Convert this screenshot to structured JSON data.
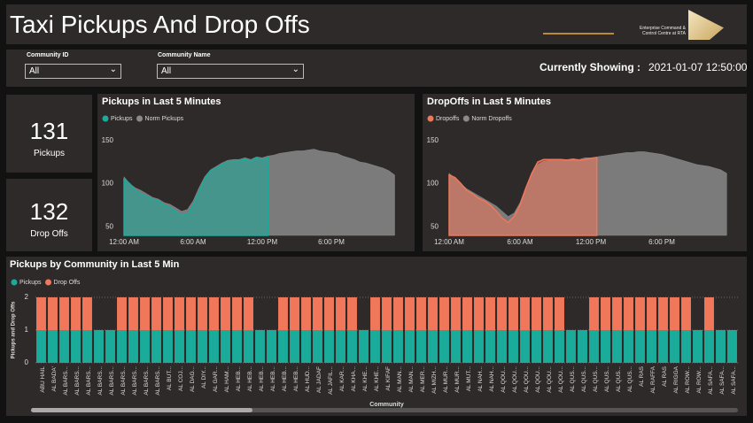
{
  "header": {
    "title": "Taxi Pickups And Drop Offs",
    "logo_text": "Enterprise Command & Control Centre at RTA"
  },
  "filters": {
    "community_id_label": "Community ID",
    "community_id_value": "All",
    "community_name_label": "Community Name",
    "community_name_value": "All",
    "showing_label": "Currently Showing :",
    "showing_value": "2021-01-07 12:50:00"
  },
  "kpis": [
    {
      "value": "131",
      "label": "Pickups"
    },
    {
      "value": "132",
      "label": "Drop Offs"
    }
  ],
  "chart_data": [
    {
      "type": "area",
      "title": "Pickups in Last 5 Minutes",
      "x": [
        0,
        0.5,
        1,
        1.5,
        2,
        2.5,
        3,
        3.5,
        4,
        4.5,
        5,
        5.5,
        6,
        6.5,
        7,
        7.5,
        8,
        8.5,
        9,
        9.5,
        10,
        10.5,
        11,
        11.5,
        12,
        12.5,
        13,
        13.5,
        14,
        14.5,
        15,
        15.5,
        16,
        16.5,
        17,
        17.5,
        18,
        18.5,
        19,
        19.5,
        20,
        20.5,
        21,
        21.5,
        22,
        22.5,
        23,
        23.5
      ],
      "series": [
        {
          "name": "Pickups",
          "color": "#1aab9b",
          "values": [
            105,
            100,
            92,
            88,
            85,
            82,
            80,
            75,
            72,
            68,
            63,
            65,
            75,
            90,
            105,
            115,
            118,
            122,
            125,
            125,
            127,
            128,
            126,
            130,
            128,
            130,
            null,
            null,
            null,
            null,
            null,
            null,
            null,
            null,
            null,
            null,
            null,
            null,
            null,
            null,
            null,
            null,
            null,
            null,
            null,
            null,
            null,
            null
          ]
        },
        {
          "name": "Norm Pickups",
          "color": "#8a8a8a",
          "values": [
            108,
            100,
            95,
            92,
            88,
            84,
            82,
            78,
            76,
            72,
            68,
            70,
            80,
            95,
            108,
            116,
            120,
            124,
            127,
            128,
            128,
            130,
            128,
            131,
            130,
            132,
            133,
            135,
            136,
            137,
            138,
            138,
            139,
            140,
            138,
            137,
            136,
            135,
            132,
            130,
            128,
            125,
            124,
            122,
            120,
            118,
            115,
            110
          ]
        }
      ],
      "xlim": [
        0,
        24
      ],
      "xticks": [
        {
          "value": 0,
          "label": "12:00 AM"
        },
        {
          "value": 6,
          "label": "6:00 AM"
        },
        {
          "value": 12,
          "label": "12:00 PM"
        },
        {
          "value": 18,
          "label": "6:00 PM"
        }
      ],
      "ylim": [
        40,
        160
      ],
      "yticks": [
        50,
        100,
        150
      ],
      "grid": false
    },
    {
      "type": "area",
      "title": "DropOffs in Last 5 Minutes",
      "x": [
        0,
        0.5,
        1,
        1.5,
        2,
        2.5,
        3,
        3.5,
        4,
        4.5,
        5,
        5.5,
        6,
        6.5,
        7,
        7.5,
        8,
        8.5,
        9,
        9.5,
        10,
        10.5,
        11,
        11.5,
        12,
        12.5,
        13,
        13.5,
        14,
        14.5,
        15,
        15.5,
        16,
        16.5,
        17,
        17.5,
        18,
        18.5,
        19,
        19.5,
        20,
        20.5,
        21,
        21.5,
        22,
        22.5,
        23,
        23.5
      ],
      "series": [
        {
          "name": "Dropoffs",
          "color": "#f0775a",
          "values": [
            110,
            107,
            100,
            92,
            88,
            83,
            80,
            75,
            68,
            60,
            55,
            62,
            75,
            95,
            112,
            125,
            128,
            128,
            128,
            128,
            127,
            128,
            127,
            128,
            129,
            130,
            null,
            null,
            null,
            null,
            null,
            null,
            null,
            null,
            null,
            null,
            null,
            null,
            null,
            null,
            null,
            null,
            null,
            null,
            null,
            null,
            null,
            null
          ]
        },
        {
          "name": "Norm Dropoffs",
          "color": "#8a8a8a",
          "values": [
            112,
            106,
            100,
            94,
            90,
            86,
            82,
            78,
            74,
            68,
            62,
            66,
            78,
            96,
            112,
            122,
            126,
            127,
            128,
            128,
            128,
            129,
            128,
            130,
            130,
            131,
            132,
            133,
            134,
            135,
            136,
            136,
            137,
            137,
            136,
            135,
            134,
            132,
            130,
            128,
            126,
            124,
            122,
            121,
            120,
            118,
            116,
            112
          ]
        }
      ],
      "xlim": [
        0,
        24
      ],
      "xticks": [
        {
          "value": 0,
          "label": "12:00 AM"
        },
        {
          "value": 6,
          "label": "6:00 AM"
        },
        {
          "value": 12,
          "label": "12:00 PM"
        },
        {
          "value": 18,
          "label": "6:00 PM"
        }
      ],
      "ylim": [
        40,
        160
      ],
      "yticks": [
        50,
        100,
        150
      ],
      "grid": false
    },
    {
      "type": "stacked-bar",
      "title": "Pickups by Community in Last 5 Min",
      "xlabel": "Community",
      "ylabel": "Pickups and Drop Offs",
      "categories": [
        "ABU HAIL",
        "AL BADA'",
        "AL BARS...",
        "AL BARS...",
        "AL BARS...",
        "AL BARS...",
        "AL BARS...",
        "AL BARS...",
        "AL BARS...",
        "AL BARS...",
        "AL BARS...",
        "AL BUT...",
        "AL COJ...",
        "AL DAG...",
        "AL DIY...",
        "AL GAR...",
        "AL HAM...",
        "AL HEB...",
        "AL HEB...",
        "AL HEB...",
        "AL HEB...",
        "AL HEB...",
        "AL HEB...",
        "AL HUD...",
        "AL JADAF",
        "AL JAFIL...",
        "AL KAR...",
        "AL KHA...",
        "AL KHE...",
        "AL KHE...",
        "AL KIFAF",
        "AL MAN...",
        "AL MAN...",
        "AL MER...",
        "AL MIZH...",
        "AL MUR...",
        "AL MUR...",
        "AL MUT...",
        "AL NAH...",
        "AL NAH...",
        "AL QOU...",
        "AL QOU...",
        "AL QOU...",
        "AL QOU...",
        "AL QOU...",
        "AL QOU...",
        "AL QUS...",
        "AL QUS...",
        "AL QUS...",
        "AL QUS...",
        "AL QUS...",
        "AL QUS...",
        "AL RAS",
        "AL RAFFA",
        "AL RAS",
        "AL RIGGA",
        "AL ROW...",
        "AL ROW...",
        "AL SAFA...",
        "AL SAFA...",
        "AL SAFA..."
      ],
      "series": [
        {
          "name": "Pickups",
          "color": "#1aab9b",
          "values": [
            1,
            1,
            1,
            1,
            1,
            1,
            1,
            1,
            1,
            1,
            1,
            1,
            1,
            1,
            1,
            1,
            1,
            1,
            1,
            1,
            1,
            1,
            1,
            1,
            1,
            1,
            1,
            1,
            1,
            1,
            1,
            1,
            1,
            1,
            1,
            1,
            1,
            1,
            1,
            1,
            1,
            1,
            1,
            1,
            1,
            1,
            1,
            1,
            1,
            1,
            1,
            1,
            1,
            1,
            1,
            1,
            1,
            1,
            1,
            1,
            1
          ]
        },
        {
          "name": "Drop Offs",
          "color": "#f0775a",
          "values": [
            1,
            1,
            1,
            1,
            1,
            0,
            0,
            1,
            1,
            1,
            1,
            1,
            1,
            1,
            1,
            1,
            1,
            1,
            1,
            0,
            0,
            1,
            1,
            1,
            1,
            1,
            1,
            1,
            0,
            1,
            1,
            1,
            1,
            1,
            1,
            1,
            1,
            1,
            1,
            1,
            1,
            1,
            1,
            1,
            1,
            1,
            0,
            0,
            1,
            1,
            1,
            1,
            1,
            1,
            1,
            1,
            1,
            0,
            1,
            0,
            0
          ]
        }
      ],
      "ylim": [
        0,
        2
      ],
      "yticks": [
        0,
        1,
        2
      ],
      "grid": true
    }
  ]
}
